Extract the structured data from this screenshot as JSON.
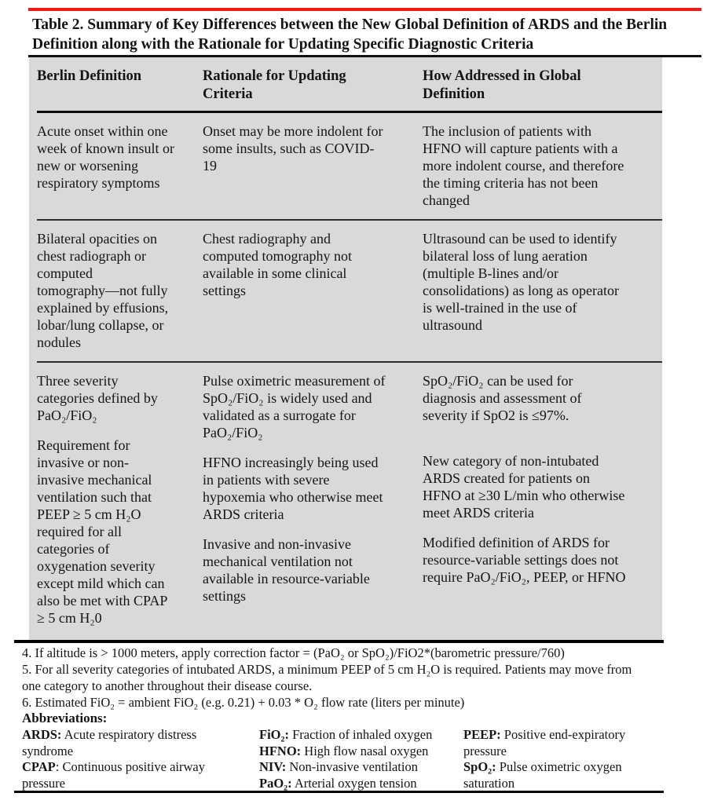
{
  "page": {
    "title": "Table 2. Summary of Key Differences between the New Global Definition of ARDS and the Berlin\nDefinition along with the Rationale for Updating Specific Diagnostic Criteria",
    "colors": {
      "accent_red": "#ef1a17",
      "panel_gray": "#d9d9d9",
      "text": "#141414"
    }
  },
  "table": {
    "headers": [
      "Berlin Definition",
      "Rationale for Updating\nCriteria",
      "How Addressed in Global\nDefinition"
    ],
    "rows": [
      {
        "berlin": [
          "Acute onset within one\nweek of known insult or\nnew or worsening\nrespiratory symptoms"
        ],
        "rationale": [
          "Onset may be more indolent for\nsome insults, such as COVID-\n19"
        ],
        "global": [
          "The inclusion of patients with\nHFNO will capture patients with a\nmore indolent course, and therefore\nthe timing criteria has not been\nchanged"
        ]
      },
      {
        "berlin": [
          "Bilateral opacities on\nchest radiograph or\ncomputed\ntomography—not fully\nexplained by effusions,\nlobar/lung collapse, or\nnodules"
        ],
        "rationale": [
          "Chest radiography and\ncomputed tomography not\navailable in some clinical\nsettings"
        ],
        "global": [
          "Ultrasound can be used to identify\nbilateral loss of lung aeration\n(multiple B-lines and/or\nconsolidations) as long as operator\nis well-trained in the use of\nultrasound"
        ]
      },
      {
        "berlin": [
          "Three severity\ncategories defined by\nPaO₂/FiO₂",
          "Requirement for\ninvasive or non-\ninvasive mechanical\nventilation such that\nPEEP ≥ 5 cm H₂O\nrequired for all\ncategories of\noxygenation severity\nexcept mild which can\nalso be met with CPAP\n≥ 5 cm H₂0"
        ],
        "rationale": [
          "Pulse oximetric measurement of\nSpO₂/FiO₂ is widely used and\nvalidated as a surrogate for\nPaO₂/FiO₂",
          "HFNO increasingly being used\nin patients with severe\nhypoxemia who otherwise meet\nARDS criteria",
          "Invasive and non-invasive\nmechanical ventilation not\navailable in resource-variable\nsettings"
        ],
        "global": [
          "SpO₂/FiO₂ can be used for\ndiagnosis and assessment of\nseverity if SpO2 is ≤97%.",
          "New category of non-intubated\nARDS created for patients on\nHFNO at ≥30 L/min who otherwise\nmeet ARDS criteria",
          "Modified definition of ARDS for\nresource-variable settings does not\nrequire PaO₂/FiO₂, PEEP, or HFNO"
        ]
      }
    ]
  },
  "footnotes": [
    "4. If altitude is > 1000 meters, apply correction factor = (PaO₂ or SpO₂)/FiO2*(barometric pressure/760)",
    "5. For all severity categories of intubated ARDS, a minimum PEEP of 5 cm H₂O is required. Patients may move from\none category to another throughout their disease course.",
    "6. Estimated FiO₂ = ambient FiO₂ (e.g. 0.21) + 0.03 * O₂ flow rate (liters per minute)"
  ],
  "abbreviations": {
    "heading": "Abbreviations:",
    "col1": [
      {
        "term": "ARDS:",
        "def": " Acute respiratory distress\nsyndrome"
      },
      {
        "term": "CPAP",
        "def": ": Continuous positive airway\npressure"
      }
    ],
    "col2": [
      {
        "term": "FiO₂:",
        "def": " Fraction of inhaled oxygen"
      },
      {
        "term": "HFNO:",
        "def": " High flow nasal oxygen"
      },
      {
        "term": "NIV:",
        "def": " Non-invasive ventilation"
      },
      {
        "term": "PaO₂:",
        "def": " Arterial oxygen tension"
      }
    ],
    "col3": [
      {
        "term": "PEEP:",
        "def": " Positive end-expiratory\npressure"
      },
      {
        "term": "SpO₂:",
        "def": " Pulse oximetric oxygen\nsaturation"
      }
    ]
  }
}
